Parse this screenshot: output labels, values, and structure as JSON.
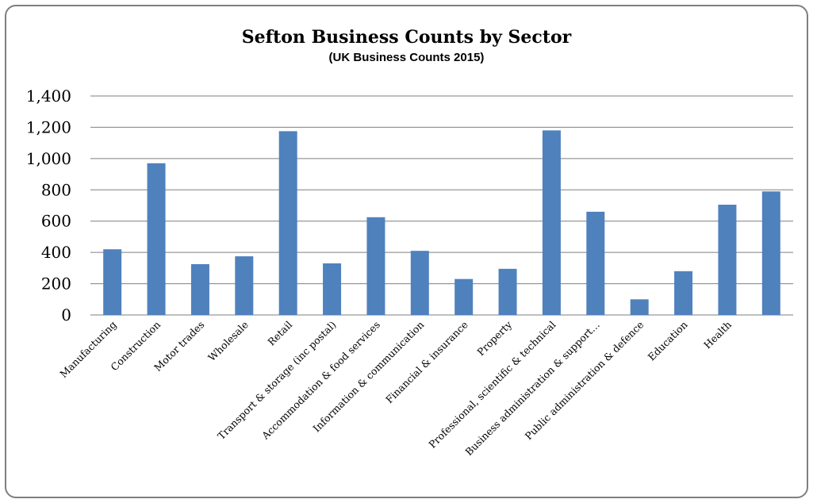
{
  "chart_data": {
    "type": "bar",
    "title": "Sefton Business Counts by Sector",
    "subtitle": "(UK Business Counts 2015)",
    "categories": [
      "Manufacturing",
      "Construction",
      "Motor trades",
      "Wholesale",
      "Retail",
      "Transport & storage (inc postal)",
      "Accommodation & food services",
      "Information & communication",
      "Financial & insurance",
      "Property",
      "Professional, scientific & technical",
      "Business administration & support…",
      "Public administration & defence",
      "Education",
      "Health",
      ""
    ],
    "values": [
      420,
      970,
      325,
      375,
      1175,
      330,
      625,
      410,
      230,
      295,
      1180,
      660,
      100,
      280,
      705,
      790
    ],
    "ylim": [
      0,
      1400
    ],
    "yticks": [
      0,
      200,
      400,
      600,
      800,
      1000,
      1200,
      1400
    ],
    "ytick_labels": [
      "0",
      "200",
      "400",
      "600",
      "800",
      "1,000",
      "1,200",
      "1,400"
    ],
    "xlabel": "",
    "ylabel": "",
    "grid": true,
    "legend": "none",
    "bar_color": "#4f81bd",
    "grid_color": "#7f7f7f"
  }
}
